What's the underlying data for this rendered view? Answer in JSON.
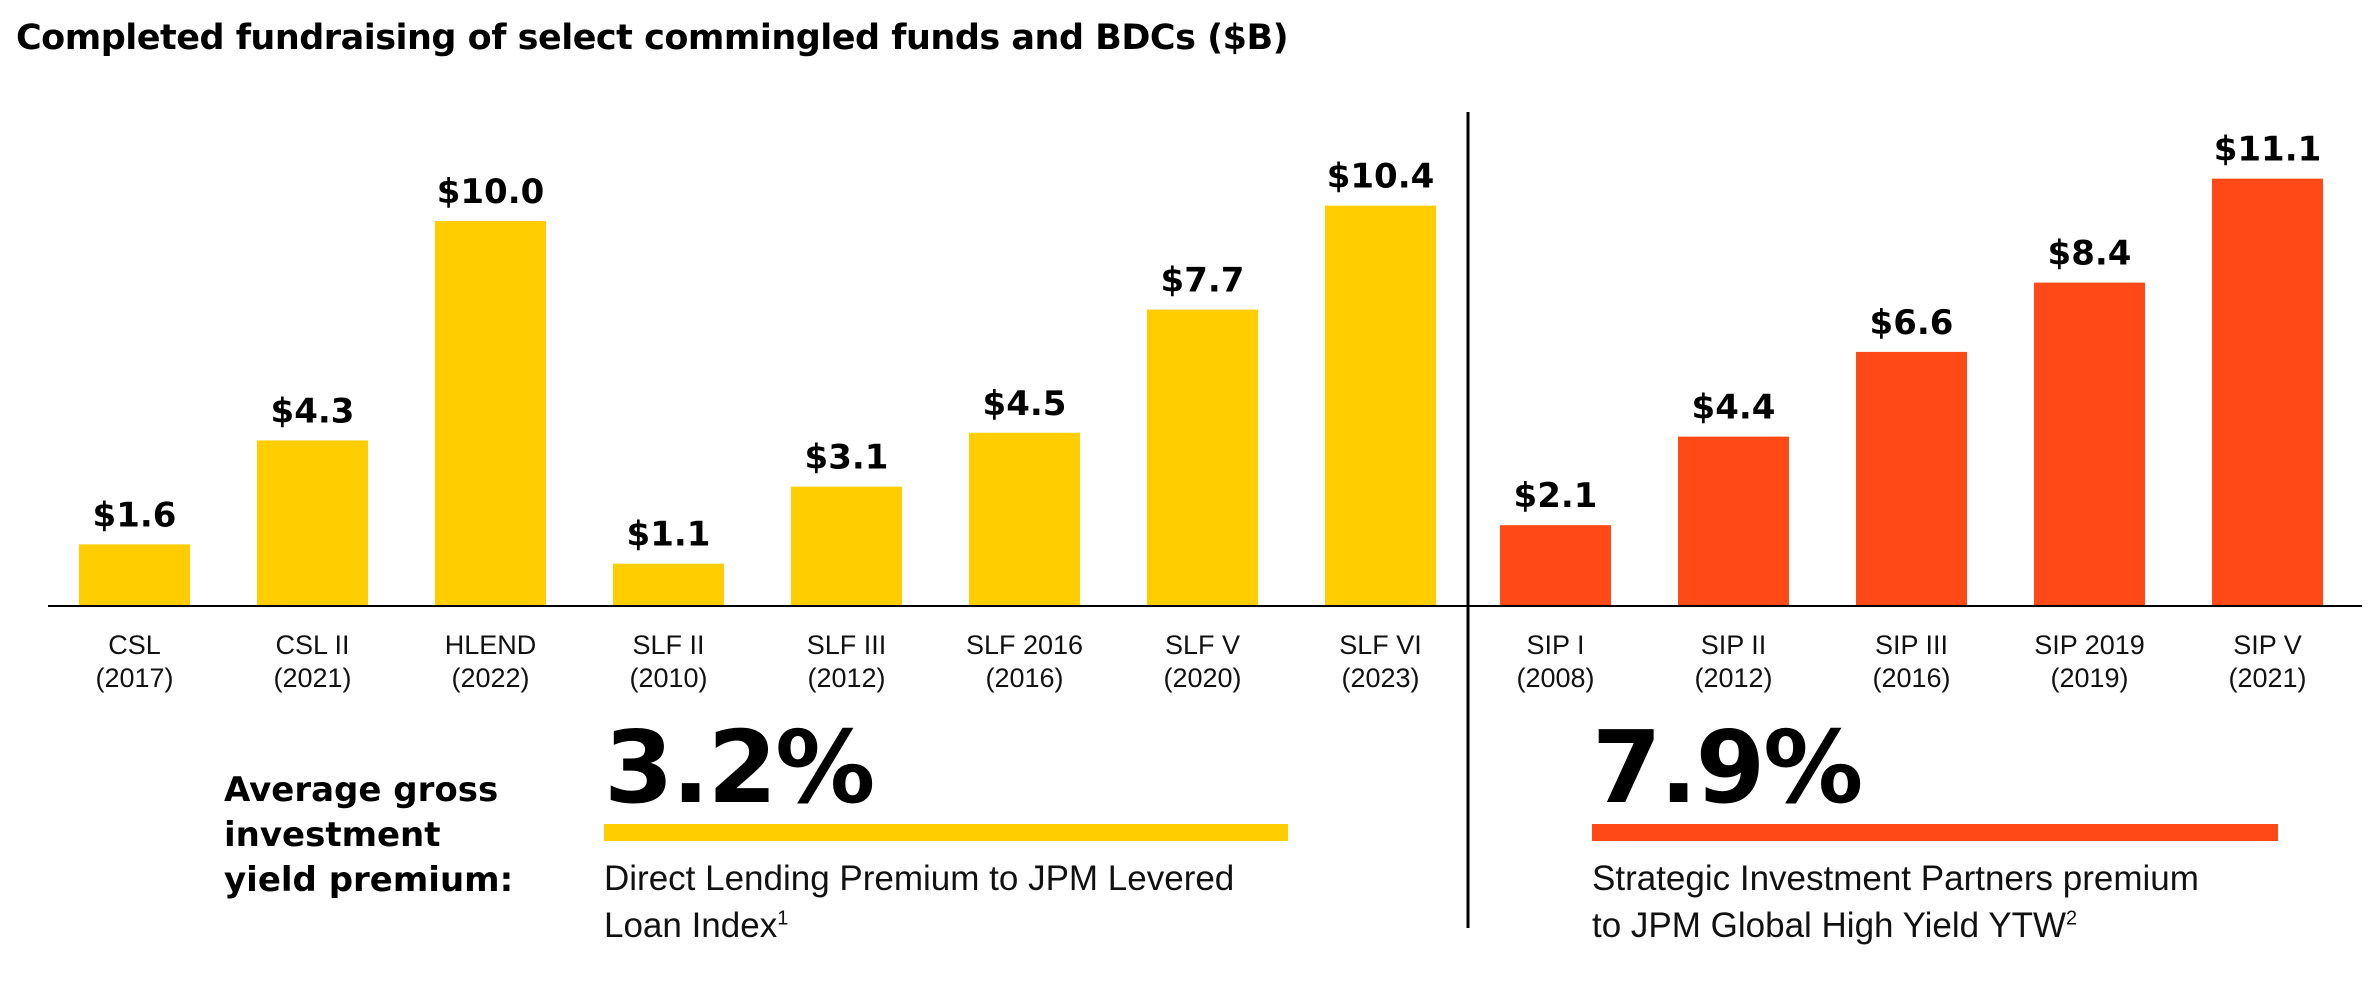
{
  "colors": {
    "yellow": "#FFCD00",
    "orange": "#FF4A17",
    "axis": "#000000"
  },
  "chart_data": {
    "type": "bar",
    "title": "Completed fundraising of select commingled funds and BDCs ($B)",
    "ylim": [
      0,
      12
    ],
    "groups": [
      {
        "color": "yellow",
        "categories": [
          [
            "CSL",
            "(2017)"
          ],
          [
            "CSL II",
            "(2021)"
          ],
          [
            "HLEND",
            "(2022)"
          ],
          [
            "SLF II",
            "(2010)"
          ],
          [
            "SLF III",
            "(2012)"
          ],
          [
            "SLF 2016",
            "(2016)"
          ],
          [
            "SLF V",
            "(2020)"
          ],
          [
            "SLF VI",
            "(2023)"
          ]
        ],
        "values": [
          1.6,
          4.3,
          10.0,
          1.1,
          3.1,
          4.5,
          7.7,
          10.4
        ],
        "labels": [
          "$1.6",
          "$4.3",
          "$10.0",
          "$1.1",
          "$3.1",
          "$4.5",
          "$7.7",
          "$10.4"
        ]
      },
      {
        "color": "orange",
        "categories": [
          [
            "SIP I",
            "(2008)"
          ],
          [
            "SIP II",
            "(2012)"
          ],
          [
            "SIP III",
            "(2016)"
          ],
          [
            "SIP 2019",
            "(2019)"
          ],
          [
            "SIP V",
            "(2021)"
          ]
        ],
        "values": [
          2.1,
          4.4,
          6.6,
          8.4,
          11.1
        ],
        "labels": [
          "$2.1",
          "$4.4",
          "$6.6",
          "$8.4",
          "$11.1"
        ]
      }
    ]
  },
  "premium": {
    "label_lines": [
      "Average gross",
      "investment",
      "yield premium:"
    ],
    "left": {
      "value": "3.2%",
      "desc_line1": "Direct Lending Premium to JPM Levered",
      "desc_line2": "Loan Index",
      "footnote": "1"
    },
    "right": {
      "value": "7.9%",
      "desc_line1": "Strategic Investment Partners premium",
      "desc_line2": "to JPM Global High Yield YTW",
      "footnote": "2"
    }
  }
}
